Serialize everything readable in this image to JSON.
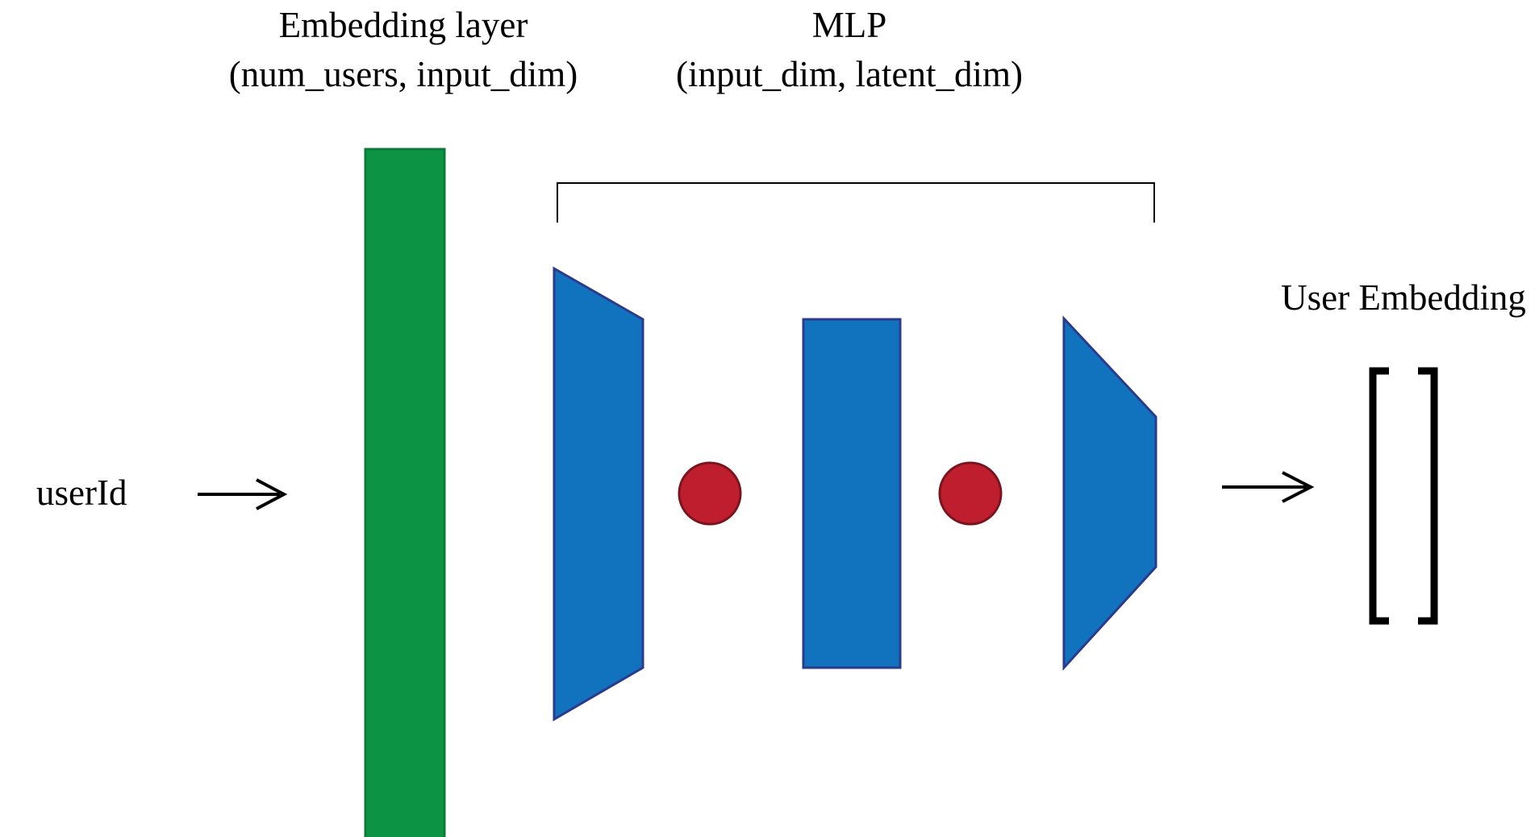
{
  "embedding_layer": {
    "title": "Embedding layer",
    "shape": "(num_users, input_dim)",
    "color": "#0c9444"
  },
  "mlp": {
    "title": "MLP",
    "shape": "(input_dim, latent_dim)",
    "layer_color": "#1172be",
    "layer_border": "#2a3a8c"
  },
  "activation": {
    "color": "#be1e2d",
    "border": "#7a1520"
  },
  "input": {
    "label": "userId",
    "arrow": "→"
  },
  "output": {
    "label": "User Embedding",
    "arrow": "→"
  }
}
